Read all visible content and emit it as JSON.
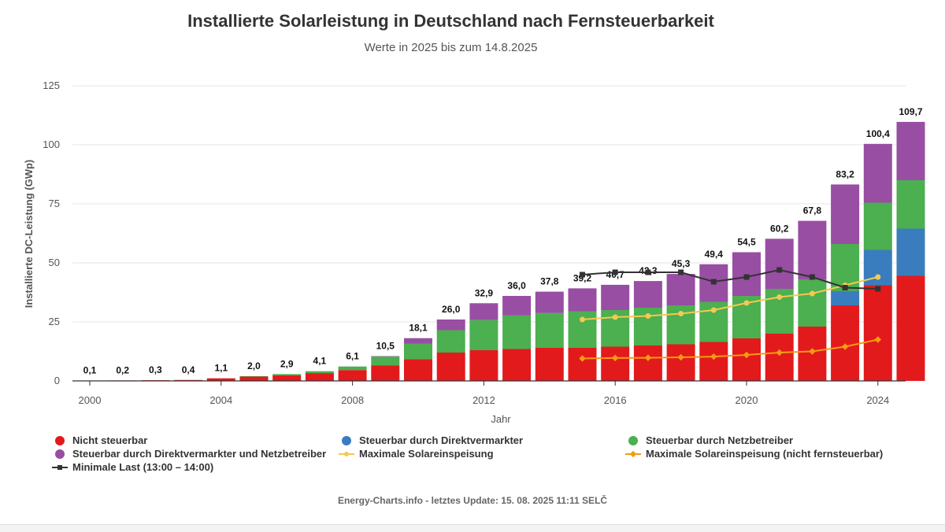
{
  "chart_data": {
    "type": "bar",
    "title": "Installierte Solarleistung in Deutschland nach Fernsteuerbarkeit",
    "subtitle": "Werte in 2025 bis zum 14.8.2025",
    "xlabel": "Jahr",
    "ylabel": "Installierte DC-Leistung (GWp)",
    "ylim": [
      0,
      125
    ],
    "yticks": [
      "0",
      "25",
      "50",
      "75",
      "100",
      "125"
    ],
    "xticks": [
      "2000",
      "2004",
      "2008",
      "2012",
      "2016",
      "2020",
      "2024"
    ],
    "xticks_years": [
      2000,
      2004,
      2008,
      2012,
      2016,
      2020,
      2024
    ],
    "grid": true,
    "legend_position": "bottom",
    "categories": [
      2000,
      2001,
      2002,
      2003,
      2004,
      2005,
      2006,
      2007,
      2008,
      2009,
      2010,
      2011,
      2012,
      2013,
      2014,
      2015,
      2016,
      2017,
      2018,
      2019,
      2020,
      2021,
      2022,
      2023,
      2024,
      2025
    ],
    "totals_labels": [
      "0,1",
      "0,2",
      "0,3",
      "0,4",
      "1,1",
      "2,0",
      "2,9",
      "4,1",
      "6,1",
      "10,5",
      "18,1",
      "26,0",
      "32,9",
      "36,0",
      "37,8",
      "39,2",
      "40,7",
      "42,3",
      "45,3",
      "49,4",
      "54,5",
      "60,2",
      "67,8",
      "83,2",
      "100,4",
      "109,7"
    ],
    "series": [
      {
        "name": "Nicht steuerbar",
        "kind": "bar",
        "color": "#e31a1c",
        "values": [
          0.1,
          0.2,
          0.3,
          0.4,
          1.1,
          1.9,
          2.4,
          3.3,
          4.6,
          6.5,
          9.2,
          12.0,
          13.0,
          13.5,
          14.0,
          14.0,
          14.5,
          15.0,
          15.5,
          16.5,
          18.0,
          20.0,
          23.0,
          32.0,
          40.5,
          44.5
        ]
      },
      {
        "name": "Steuerbar durch Direktvermarkter",
        "kind": "bar",
        "color": "#3a7dbf",
        "values": [
          0,
          0,
          0,
          0,
          0,
          0,
          0,
          0,
          0,
          0,
          0,
          0,
          0,
          0,
          0,
          0,
          0,
          0,
          0,
          0,
          0,
          0,
          0,
          6.0,
          15.0,
          20.0
        ]
      },
      {
        "name": "Steuerbar durch Netzbetreiber",
        "kind": "bar",
        "color": "#4caf50",
        "values": [
          0,
          0,
          0,
          0,
          0,
          0.1,
          0.5,
          0.8,
          1.5,
          3.8,
          6.5,
          9.5,
          12.8,
          14.2,
          14.8,
          15.5,
          15.5,
          16.0,
          16.5,
          17.0,
          18.0,
          19.0,
          20.0,
          20.0,
          20.0,
          20.5
        ]
      },
      {
        "name": "Steuerbar durch Direktvermarkter und Netzbetreiber",
        "kind": "bar",
        "color": "#984ea3",
        "values": [
          0,
          0,
          0,
          0,
          0,
          0,
          0,
          0,
          0,
          0.2,
          2.4,
          4.5,
          7.1,
          8.3,
          9.0,
          9.7,
          10.7,
          11.3,
          13.3,
          15.9,
          18.5,
          21.2,
          24.8,
          25.2,
          24.9,
          24.7
        ]
      },
      {
        "name": "Maximale Solareinspeisung",
        "kind": "line",
        "color": "#f5c951",
        "marker": "dot",
        "x": [
          2015,
          2016,
          2017,
          2018,
          2019,
          2020,
          2021,
          2022,
          2023,
          2024
        ],
        "values": [
          26.0,
          27.0,
          27.5,
          28.5,
          30.0,
          33.0,
          35.5,
          37.0,
          40.5,
          44.0
        ]
      },
      {
        "name": "Maximale Solareinspeisung (nicht fernsteuerbar)",
        "kind": "line",
        "color": "#f39c12",
        "marker": "diamond",
        "x": [
          2015,
          2016,
          2017,
          2018,
          2019,
          2020,
          2021,
          2022,
          2023,
          2024
        ],
        "values": [
          9.5,
          9.7,
          9.8,
          10.0,
          10.3,
          11.0,
          12.0,
          12.5,
          14.5,
          17.5
        ]
      },
      {
        "name": "Minimale Last (13:00 – 14:00)",
        "kind": "line",
        "color": "#333333",
        "marker": "square",
        "x": [
          2015,
          2016,
          2017,
          2018,
          2019,
          2020,
          2021,
          2022,
          2023,
          2024
        ],
        "values": [
          45.0,
          46.0,
          46.0,
          46.0,
          42.0,
          44.0,
          47.0,
          44.0,
          39.5,
          39.0
        ]
      }
    ]
  },
  "legend": {
    "items": [
      {
        "label": "Nicht steuerbar"
      },
      {
        "label": "Steuerbar durch Direktvermarkter"
      },
      {
        "label": "Steuerbar durch Netzbetreiber"
      },
      {
        "label": "Steuerbar durch Direktvermarkter und Netzbetreiber"
      },
      {
        "label": "Maximale Solareinspeisung"
      },
      {
        "label": "Maximale Solareinspeisung (nicht fernsteuerbar)"
      },
      {
        "label": "Minimale Last (13:00 – 14:00)"
      }
    ]
  },
  "footer": {
    "credit": "Energy-Charts.info - letztes Update: 15. 08. 2025 11:11 SELČ"
  }
}
